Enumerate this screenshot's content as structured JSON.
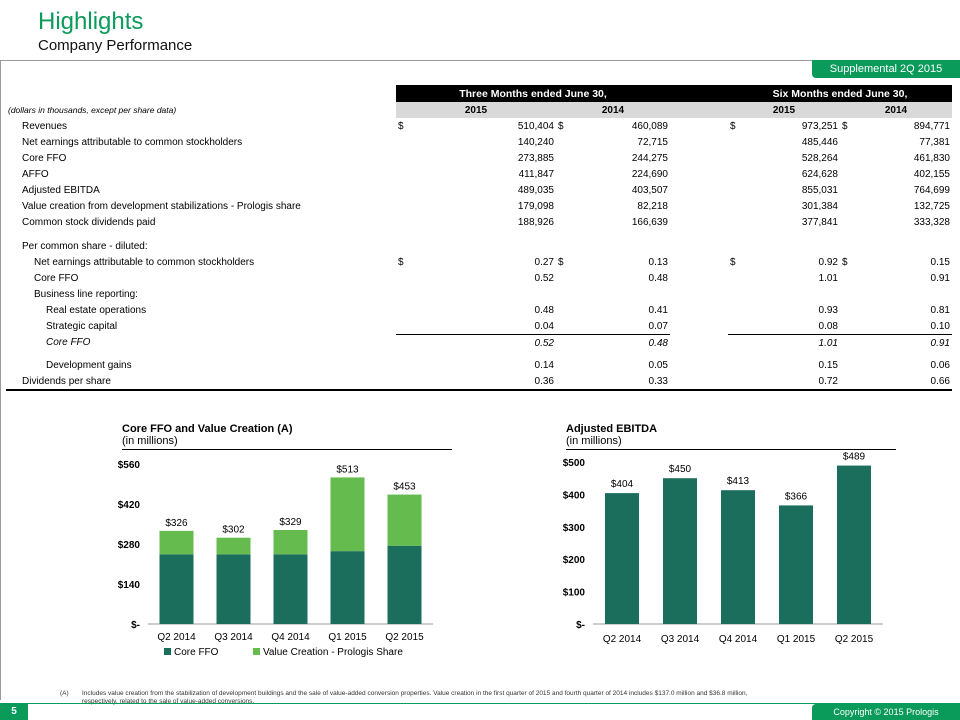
{
  "header": {
    "title": "Highlights",
    "subtitle": "Company Performance",
    "badge": "Supplemental 2Q 2015"
  },
  "table": {
    "period_headers": [
      "Three Months ended June 30,",
      "Six Months ended June 30,"
    ],
    "units_note": "(dollars in thousands, except per share data)",
    "years": [
      "2015",
      "2014",
      "2015",
      "2014"
    ],
    "currency_symbol": "$",
    "rows": [
      {
        "label": "Revenues",
        "values": [
          "510,404",
          "460,089",
          "973,251",
          "894,771"
        ]
      },
      {
        "label": "Net earnings attributable to common stockholders",
        "values": [
          "140,240",
          "72,715",
          "485,446",
          "77,381"
        ]
      },
      {
        "label": "Core FFO",
        "values": [
          "273,885",
          "244,275",
          "528,264",
          "461,830"
        ]
      },
      {
        "label": "AFFO",
        "values": [
          "411,847",
          "224,690",
          "624,628",
          "402,155"
        ]
      },
      {
        "label": "Adjusted EBITDA",
        "values": [
          "489,035",
          "403,507",
          "855,031",
          "764,699"
        ]
      },
      {
        "label": "Value creation from development stabilizations - Prologis share",
        "values": [
          "179,098",
          "82,218",
          "301,384",
          "132,725"
        ]
      },
      {
        "label": "Common stock dividends paid",
        "values": [
          "188,926",
          "166,639",
          "377,841",
          "333,328"
        ]
      }
    ],
    "per_share_heading": "Per common share - diluted:",
    "per_share_rows": [
      {
        "label": "Net earnings attributable to common stockholders",
        "values": [
          "0.27",
          "0.13",
          "0.92",
          "0.15"
        ]
      },
      {
        "label": "Core FFO",
        "values": [
          "0.52",
          "0.48",
          "1.01",
          "0.91"
        ]
      }
    ],
    "business_line_heading": "Business line reporting:",
    "business_rows": [
      {
        "label": "Real estate operations",
        "values": [
          "0.48",
          "0.41",
          "0.93",
          "0.81"
        ]
      },
      {
        "label": "Strategic capital",
        "values": [
          "0.04",
          "0.07",
          "0.08",
          "0.10"
        ]
      }
    ],
    "core_ffo_subtotal": {
      "label": "Core FFO",
      "values": [
        "0.52",
        "0.48",
        "1.01",
        "0.91"
      ]
    },
    "development_gains": {
      "label": "Development gains",
      "values": [
        "0.14",
        "0.05",
        "0.15",
        "0.06"
      ]
    },
    "dividends_per_share": {
      "label": "Dividends per share",
      "values": [
        "0.36",
        "0.33",
        "0.72",
        "0.66"
      ]
    }
  },
  "chart_data": [
    {
      "type": "bar",
      "stacked": true,
      "title": "Core FFO  and Value Creation (A)",
      "subtitle": "(in millions)",
      "categories": [
        "Q2 2014",
        "Q3 2014",
        "Q4 2014",
        "Q1 2015",
        "Q2 2015"
      ],
      "series": [
        {
          "name": "Core FFO",
          "values": [
            244,
            244,
            244,
            255,
            274
          ],
          "color": "#1b6e5c"
        },
        {
          "name": "Value Creation - Prologis Share",
          "values": [
            82,
            58,
            85,
            258,
            179
          ],
          "color": "#66bb4f"
        }
      ],
      "totals": [
        "$326",
        "$302",
        "$329",
        "$513",
        "$453"
      ],
      "total_values": [
        326,
        302,
        329,
        513,
        453
      ],
      "ylim": [
        0,
        560
      ],
      "yticks": [
        0,
        140,
        280,
        420,
        560
      ],
      "ytick_labels": [
        "$-",
        "$140",
        "$280",
        "$420",
        "$560"
      ],
      "legend": "bottom"
    },
    {
      "type": "bar",
      "title": "Adjusted EBITDA",
      "subtitle": "(in millions)",
      "categories": [
        "Q2 2014",
        "Q3 2014",
        "Q4 2014",
        "Q1 2015",
        "Q2 2015"
      ],
      "values": [
        404,
        450,
        413,
        366,
        489
      ],
      "labels": [
        "$404",
        "$450",
        "$413",
        "$366",
        "$489"
      ],
      "color": "#1b6e5c",
      "ylim": [
        0,
        500
      ],
      "yticks": [
        0,
        100,
        200,
        300,
        400,
        500
      ],
      "ytick_labels": [
        "$-",
        "$100",
        "$200",
        "$300",
        "$400",
        "$500"
      ]
    }
  ],
  "footnote": {
    "marker": "(A)",
    "text": "Includes value creation from the stabilization of development buildings and the sale of value-added conversion properties. Value creation in the first quarter of 2015 and fourth quarter of 2014 includes $137.0 million and $36.8 million, respectively, related to the sale of value-added conversions."
  },
  "footer": {
    "page": "5",
    "copyright": "Copyright © 2015 Prologis"
  },
  "colors": {
    "brand": "#0a9a5a",
    "dark_bar": "#1b6e5c",
    "light_bar": "#66bb4f"
  }
}
